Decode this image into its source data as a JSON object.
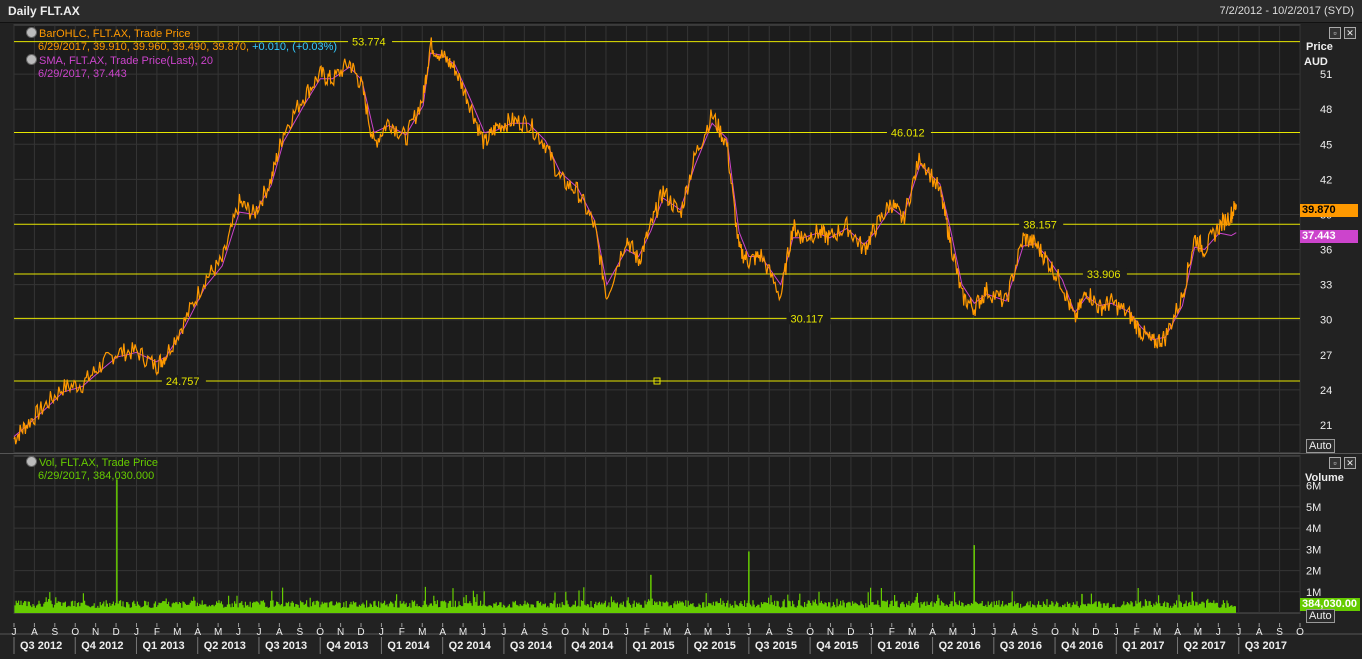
{
  "window": {
    "title": "Daily FLT.AX",
    "range": "7/2/2012 - 10/2/2017 (SYD)"
  },
  "price_panel": {
    "legend1_name": "BarOHLC, FLT.AX, Trade Price",
    "legend1_values": "6/29/2017, 39.910, 39.960, 39.490, 39.870,",
    "legend1_change": "+0.010, (+0.03%)",
    "legend2_name": "SMA, FLT.AX, Trade Price(Last),  20",
    "legend2_values": "6/29/2017, 37.443",
    "axis_title": "Price",
    "axis_unit": "AUD",
    "last_price": "39.870",
    "last_sma": "37.443",
    "auto_label": "Auto",
    "colors": {
      "price": "#ff9900",
      "sma": "#cc44cc",
      "hline": "#e6e600"
    }
  },
  "volume_panel": {
    "legend_name": "Vol, FLT.AX, Trade Price",
    "legend_values": "6/29/2017, 384,030.000",
    "axis_title": "Volume",
    "last_volume": "384,030.00",
    "auto_label": "Auto",
    "colors": {
      "bars": "#66cc00"
    }
  },
  "chart_data": [
    {
      "type": "line",
      "title": "Daily FLT.AX",
      "ylabel": "Price AUD",
      "ylim": [
        18.6,
        55.2
      ],
      "yticks": [
        "21",
        "24",
        "27",
        "30",
        "33",
        "36",
        "39",
        "42",
        "45",
        "48",
        "51"
      ],
      "horizontal_lines": [
        {
          "value": 53.774,
          "label": "53.774",
          "x": 2013.88
        },
        {
          "value": 46.012,
          "label": "46.012",
          "x": 2016.08
        },
        {
          "value": 38.157,
          "label": "38.157",
          "x": 2016.62
        },
        {
          "value": 33.906,
          "label": "33.906",
          "x": 2016.88
        },
        {
          "value": 30.117,
          "label": "30.117",
          "x": 2015.67
        },
        {
          "value": 24.757,
          "label": "24.757",
          "x": 2013.12
        }
      ],
      "x": [
        2012.5,
        2012.55,
        2012.62,
        2012.7,
        2012.78,
        2012.85,
        2012.92,
        2013.0,
        2013.08,
        2013.12,
        2013.2,
        2013.28,
        2013.35,
        2013.42,
        2013.48,
        2013.55,
        2013.6,
        2013.68,
        2013.75,
        2013.8,
        2013.87,
        2013.92,
        2013.97,
        2014.03,
        2014.1,
        2014.17,
        2014.2,
        2014.25,
        2014.3,
        2014.36,
        2014.42,
        2014.47,
        2014.53,
        2014.6,
        2014.67,
        2014.73,
        2014.8,
        2014.87,
        2014.92,
        2015.0,
        2015.05,
        2015.1,
        2015.15,
        2015.22,
        2015.28,
        2015.35,
        2015.41,
        2015.46,
        2015.5,
        2015.55,
        2015.63,
        2015.68,
        2015.72,
        2015.78,
        2015.83,
        2015.9,
        2015.97,
        2016.02,
        2016.08,
        2016.13,
        2016.2,
        2016.28,
        2016.32,
        2016.37,
        2016.42,
        2016.47,
        2016.55,
        2016.62,
        2016.67,
        2016.72,
        2016.78,
        2016.83,
        2016.88,
        2016.93,
        2016.98,
        2017.05,
        2017.1,
        2017.15,
        2017.2,
        2017.27,
        2017.32,
        2017.36,
        2017.42,
        2017.47,
        2017.49
      ],
      "series": [
        {
          "name": "BarOHLC, FLT.AX, Trade Price",
          "values": [
            19.8,
            21.0,
            22.5,
            24.2,
            24.5,
            26.0,
            27.2,
            27.3,
            26.0,
            27.0,
            30.0,
            33.5,
            35.0,
            40.0,
            39.0,
            42.0,
            46.0,
            49.0,
            51.0,
            50.5,
            52.0,
            50.0,
            45.0,
            47.0,
            45.5,
            49.0,
            53.5,
            52.5,
            51.5,
            48.5,
            45.0,
            46.5,
            47.0,
            46.8,
            45.0,
            42.0,
            41.0,
            38.0,
            32.0,
            37.0,
            35.0,
            38.0,
            41.0,
            39.0,
            44.0,
            47.5,
            45.0,
            36.0,
            35.0,
            35.5,
            32.0,
            38.0,
            37.0,
            37.5,
            37.0,
            38.0,
            36.0,
            38.0,
            40.0,
            38.5,
            44.0,
            41.0,
            37.0,
            32.0,
            31.0,
            32.5,
            31.5,
            37.0,
            36.5,
            35.0,
            33.0,
            30.0,
            32.5,
            31.0,
            31.5,
            30.5,
            29.0,
            28.0,
            28.5,
            32.0,
            37.0,
            36.0,
            38.0,
            39.0,
            39.87
          ]
        },
        {
          "name": "SMA, FLT.AX, Trade Price(Last),  20",
          "values": [
            20.0,
            20.9,
            22.2,
            23.8,
            24.3,
            25.6,
            26.8,
            27.2,
            26.4,
            26.8,
            29.5,
            32.8,
            34.6,
            39.2,
            39.0,
            41.5,
            45.2,
            48.2,
            50.6,
            50.6,
            51.6,
            50.5,
            46.0,
            46.6,
            45.8,
            48.3,
            52.8,
            52.6,
            51.8,
            49.0,
            46.0,
            46.2,
            46.8,
            46.8,
            45.3,
            42.6,
            41.3,
            38.5,
            33.0,
            36.0,
            35.4,
            37.6,
            40.4,
            39.4,
            43.2,
            46.8,
            45.5,
            37.5,
            35.4,
            35.4,
            33.0,
            37.0,
            37.0,
            37.4,
            37.0,
            37.8,
            36.4,
            37.6,
            39.6,
            38.8,
            43.3,
            41.6,
            38.0,
            33.0,
            31.4,
            32.2,
            31.6,
            36.3,
            36.5,
            35.3,
            33.4,
            30.6,
            32.0,
            31.2,
            31.4,
            30.7,
            29.4,
            28.3,
            28.5,
            31.2,
            36.2,
            36.0,
            37.4,
            37.2,
            37.443
          ]
        }
      ]
    },
    {
      "type": "bar",
      "title": "Volume",
      "ylabel": "Volume",
      "ylim": [
        0,
        7400000
      ],
      "yticks": [
        "1M",
        "2M",
        "3M",
        "4M",
        "5M",
        "6M"
      ],
      "x": [
        2012.92,
        2014.38,
        2015.1,
        2015.5,
        2016.42,
        2016.86,
        2017.31
      ],
      "values": [
        6300000,
        750000,
        1800000,
        2900000,
        3200000,
        900000,
        1000000
      ],
      "baseline_volume": 400000
    }
  ],
  "xaxis": {
    "months": [
      "J",
      "A",
      "S",
      "O",
      "N",
      "D",
      "J",
      "F",
      "M",
      "A",
      "M",
      "J",
      "J",
      "A",
      "S",
      "O",
      "N",
      "D",
      "J",
      "F",
      "M",
      "A",
      "M",
      "J",
      "J",
      "A",
      "S",
      "O",
      "N",
      "D",
      "J",
      "F",
      "M",
      "A",
      "M",
      "J",
      "J",
      "A",
      "S",
      "O",
      "N",
      "D",
      "J",
      "F",
      "M",
      "A",
      "M",
      "J",
      "J",
      "A",
      "S",
      "O",
      "N",
      "D",
      "J",
      "F",
      "M",
      "A",
      "M",
      "J",
      "J",
      "A",
      "S",
      "O"
    ],
    "quarters": [
      "Q3 2012",
      "Q4 2012",
      "Q1 2013",
      "Q2 2013",
      "Q3 2013",
      "Q4 2013",
      "Q1 2014",
      "Q2 2014",
      "Q3 2014",
      "Q4 2014",
      "Q1 2015",
      "Q2 2015",
      "Q3 2015",
      "Q4 2015",
      "Q1 2016",
      "Q2 2016",
      "Q3 2016",
      "Q4 2016",
      "Q1 2017",
      "Q2 2017",
      "Q3 2017"
    ]
  }
}
